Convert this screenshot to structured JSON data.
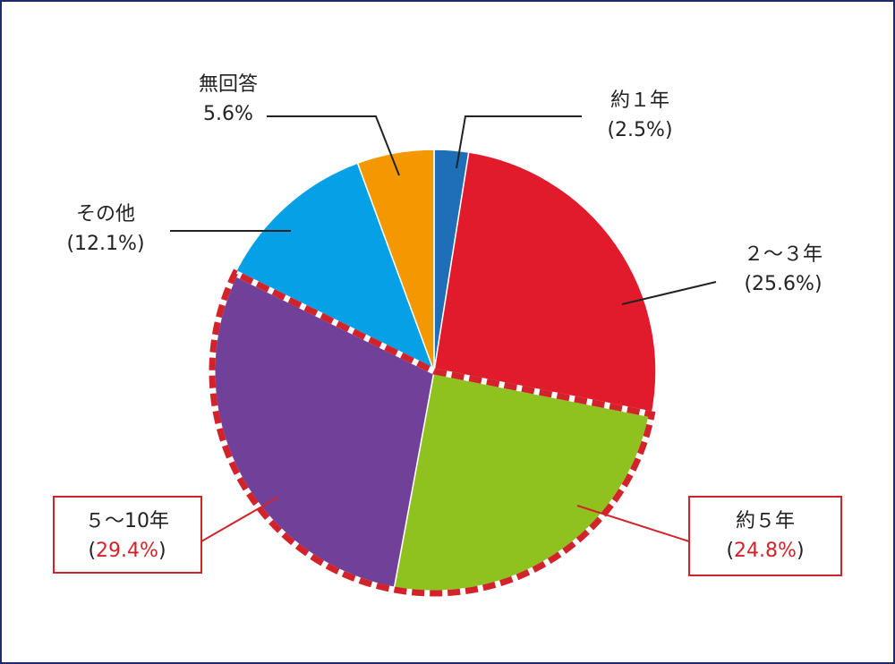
{
  "chart_data": {
    "type": "pie",
    "categories": [
      "約１年",
      "２～３年",
      "約５年",
      "５～10年",
      "その他",
      "無回答"
    ],
    "values": [
      2.5,
      25.6,
      24.8,
      29.4,
      12.1,
      5.6
    ],
    "value_labels": [
      "(2.5%)",
      "(25.6%)",
      "(24.8%)",
      "(29.4%)",
      "(12.1%)",
      "5.6%"
    ],
    "colors": [
      "#1f6fb8",
      "#e11b2c",
      "#8fc21f",
      "#71419a",
      "#05a0e6",
      "#f39800"
    ],
    "highlighted": [
      2,
      3
    ],
    "highlight_color": "#d2232a"
  }
}
